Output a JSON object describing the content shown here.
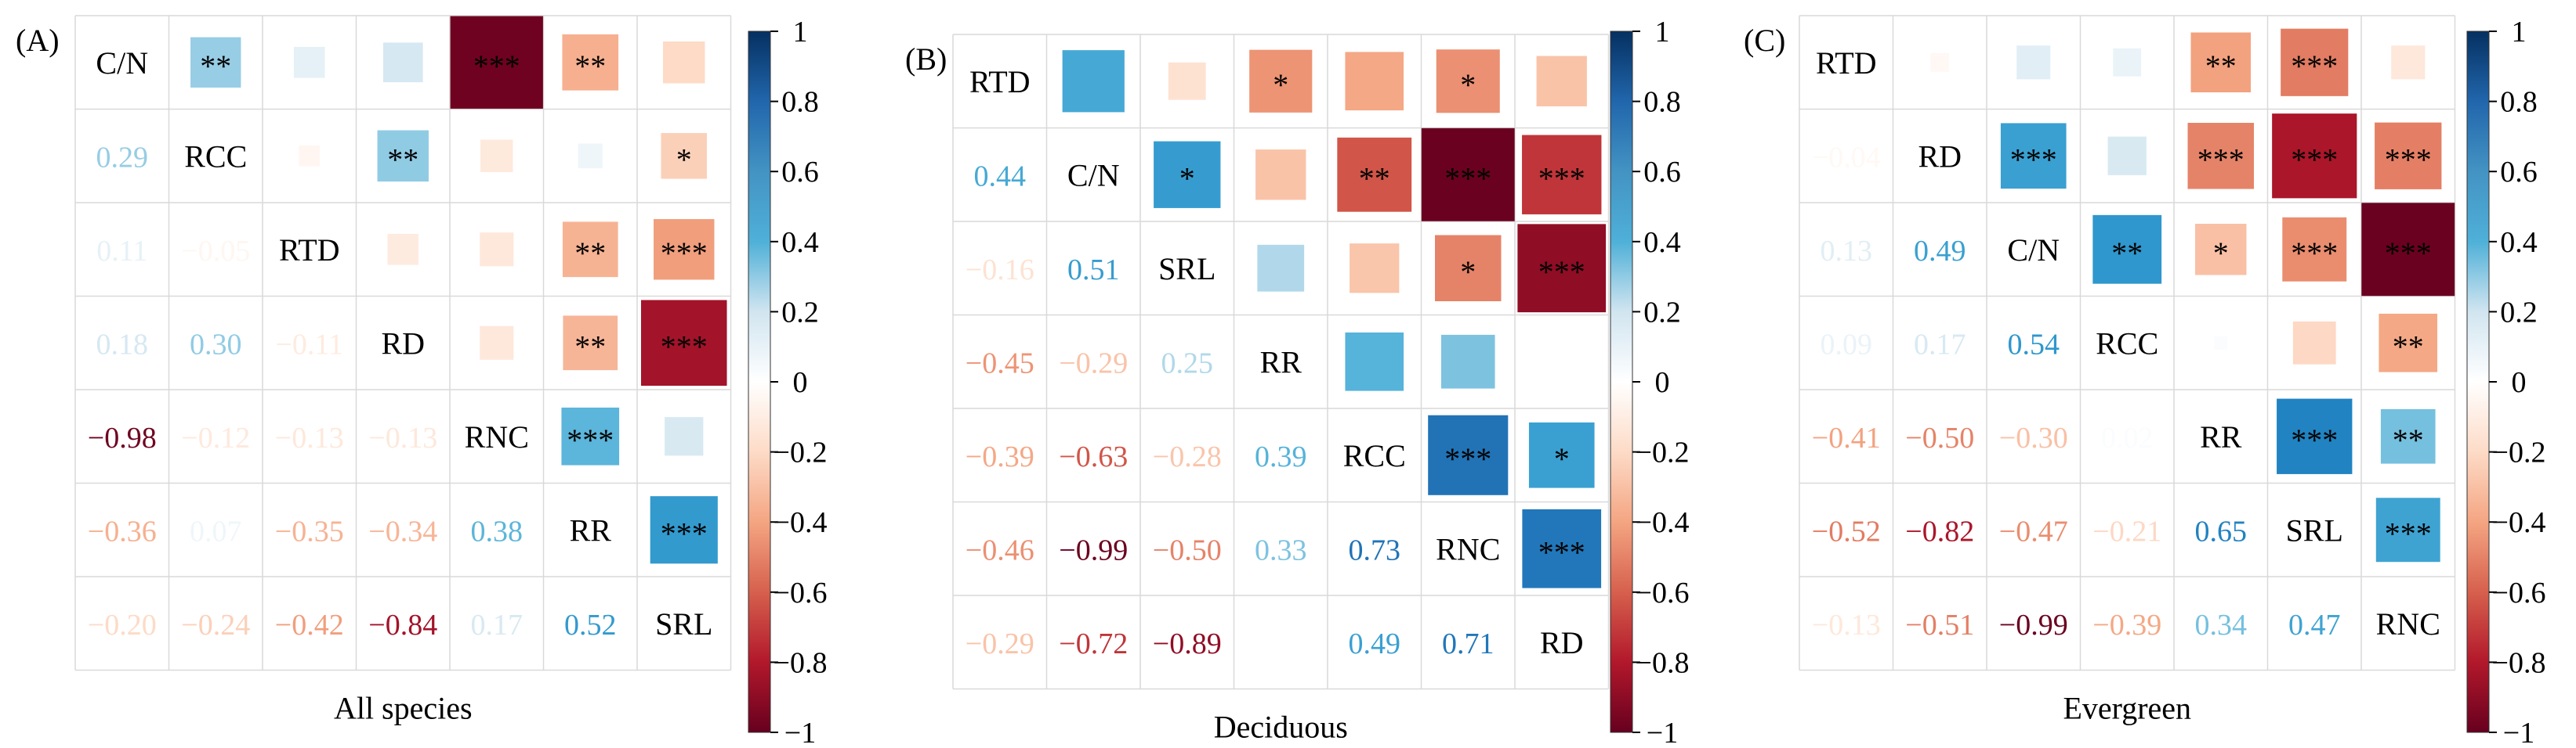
{
  "colors": {
    "neg_strong": "#67001f",
    "neg_mid": "#d6604d",
    "neg_light": "#fddbc7",
    "neutral": "#ffffff",
    "pos_light": "#d1e5f0",
    "pos_mid": "#4fb0d8",
    "pos_strong": "#053061",
    "grid": "#d9d9d9",
    "text": "#000000"
  },
  "chart_data": [
    {
      "type": "heatmap",
      "panel_label": "(A)",
      "title": "All species",
      "variables": [
        "C/N",
        "RCC",
        "RTD",
        "RD",
        "RNC",
        "RR",
        "SRL"
      ],
      "lower": [
        [],
        [
          "0.29"
        ],
        [
          "0.11",
          "−0.05"
        ],
        [
          "0.18",
          "0.30",
          "−0.11"
        ],
        [
          "−0.98",
          "−0.12",
          "−0.13",
          "−0.13"
        ],
        [
          "−0.36",
          "0.07",
          "−0.35",
          "−0.34",
          "0.38"
        ],
        [
          "−0.20",
          "−0.24",
          "−0.42",
          "−0.84",
          "0.17",
          "0.52"
        ]
      ],
      "upper_values": [
        [
          null,
          0.29,
          0.11,
          0.18,
          -0.98,
          -0.36,
          -0.2
        ],
        [
          null,
          null,
          -0.05,
          0.3,
          -0.12,
          0.07,
          -0.24
        ],
        [
          null,
          null,
          null,
          -0.11,
          -0.13,
          -0.35,
          -0.42
        ],
        [
          null,
          null,
          null,
          null,
          -0.13,
          -0.34,
          -0.84
        ],
        [
          null,
          null,
          null,
          null,
          null,
          0.38,
          0.17
        ],
        [
          null,
          null,
          null,
          null,
          null,
          null,
          0.52
        ],
        [
          null,
          null,
          null,
          null,
          null,
          null,
          null
        ]
      ],
      "upper_sig": [
        [
          "",
          "**",
          "",
          "",
          "***",
          "**",
          ""
        ],
        [
          "",
          "",
          "",
          "**",
          "",
          "",
          "*"
        ],
        [
          "",
          "",
          "",
          "",
          "",
          "**",
          "***"
        ],
        [
          "",
          "",
          "",
          "",
          "",
          "**",
          "***"
        ],
        [
          "",
          "",
          "",
          "",
          "",
          "***",
          ""
        ],
        [
          "",
          "",
          "",
          "",
          "",
          "",
          "***"
        ],
        [
          "",
          "",
          "",
          "",
          "",
          "",
          ""
        ]
      ],
      "colorbar": {
        "range": [
          -1,
          1
        ],
        "ticks": [
          "1",
          "0.8",
          "0.6",
          "0.4",
          "0.2",
          "0",
          "−0.2",
          "−0.4",
          "−0.6",
          "−0.8",
          "−1"
        ]
      }
    },
    {
      "type": "heatmap",
      "panel_label": "(B)",
      "title": "Deciduous",
      "variables": [
        "RTD",
        "C/N",
        "SRL",
        "RR",
        "RCC",
        "RNC",
        "RD"
      ],
      "lower": [
        [],
        [
          "0.44"
        ],
        [
          "−0.16",
          "0.51"
        ],
        [
          "−0.45",
          "−0.29",
          "0.25"
        ],
        [
          "−0.39",
          "−0.63",
          "−0.28",
          "0.39"
        ],
        [
          "−0.46",
          "−0.99",
          "−0.50",
          "0.33",
          "0.73"
        ],
        [
          "−0.29",
          "−0.72",
          "−0.89",
          "",
          "0.49",
          "0.71"
        ]
      ],
      "upper_values": [
        [
          null,
          0.44,
          -0.16,
          -0.45,
          -0.39,
          -0.46,
          -0.29
        ],
        [
          null,
          null,
          0.51,
          -0.29,
          -0.63,
          -0.99,
          -0.72
        ],
        [
          null,
          null,
          null,
          0.25,
          -0.28,
          -0.5,
          -0.89
        ],
        [
          null,
          null,
          null,
          null,
          0.39,
          0.33,
          0.0
        ],
        [
          null,
          null,
          null,
          null,
          null,
          0.73,
          0.49
        ],
        [
          null,
          null,
          null,
          null,
          null,
          null,
          0.71
        ],
        [
          null,
          null,
          null,
          null,
          null,
          null,
          null
        ]
      ],
      "upper_sig": [
        [
          "",
          "",
          "",
          "*",
          "",
          "*",
          ""
        ],
        [
          "",
          "",
          "*",
          "",
          "**",
          "***",
          "***"
        ],
        [
          "",
          "",
          "",
          "",
          "",
          "*",
          "***"
        ],
        [
          "",
          "",
          "",
          "",
          "",
          "",
          ""
        ],
        [
          "",
          "",
          "",
          "",
          "",
          "***",
          "*"
        ],
        [
          "",
          "",
          "",
          "",
          "",
          "",
          "***"
        ],
        [
          "",
          "",
          "",
          "",
          "",
          "",
          ""
        ]
      ],
      "colorbar": {
        "range": [
          -1,
          1
        ],
        "ticks": [
          "1",
          "0.8",
          "0.6",
          "0.4",
          "0.2",
          "0",
          "−0.2",
          "−0.4",
          "−0.6",
          "−0.8",
          "−1"
        ]
      }
    },
    {
      "type": "heatmap",
      "panel_label": "(C)",
      "title": "Evergreen",
      "variables": [
        "RTD",
        "RD",
        "C/N",
        "RCC",
        "RR",
        "SRL",
        "RNC"
      ],
      "lower": [
        [],
        [
          "−0.04"
        ],
        [
          "0.13",
          "0.49"
        ],
        [
          "0.09",
          "0.17",
          "0.54"
        ],
        [
          "−0.41",
          "−0.50",
          "−0.30",
          "0.02"
        ],
        [
          "−0.52",
          "−0.82",
          "−0.47",
          "−0.21",
          "0.65"
        ],
        [
          "−0.13",
          "−0.51",
          "−0.99",
          "−0.39",
          "0.34",
          "0.47"
        ]
      ],
      "upper_values": [
        [
          null,
          -0.04,
          0.13,
          0.09,
          -0.41,
          -0.52,
          -0.13
        ],
        [
          null,
          null,
          0.49,
          0.17,
          -0.5,
          -0.82,
          -0.51
        ],
        [
          null,
          null,
          null,
          0.54,
          -0.3,
          -0.47,
          -0.99
        ],
        [
          null,
          null,
          null,
          null,
          0.02,
          -0.21,
          -0.39
        ],
        [
          null,
          null,
          null,
          null,
          null,
          0.65,
          0.34
        ],
        [
          null,
          null,
          null,
          null,
          null,
          null,
          0.47
        ],
        [
          null,
          null,
          null,
          null,
          null,
          null,
          null
        ]
      ],
      "upper_sig": [
        [
          "",
          "",
          "",
          "",
          "**",
          "***",
          ""
        ],
        [
          "",
          "",
          "***",
          "",
          "***",
          "***",
          "***"
        ],
        [
          "",
          "",
          "",
          "**",
          "*",
          "***",
          "***"
        ],
        [
          "",
          "",
          "",
          "",
          "",
          "",
          "**"
        ],
        [
          "",
          "",
          "",
          "",
          "",
          "***",
          "**"
        ],
        [
          "",
          "",
          "",
          "",
          "",
          "",
          "***"
        ],
        [
          "",
          "",
          "",
          "",
          "",
          "",
          ""
        ]
      ],
      "colorbar": {
        "range": [
          -1,
          1
        ],
        "ticks": [
          "1",
          "0.8",
          "0.6",
          "0.4",
          "0.2",
          "0",
          "−0.2",
          "−0.4",
          "−0.6",
          "−0.8",
          "−1"
        ]
      }
    }
  ]
}
